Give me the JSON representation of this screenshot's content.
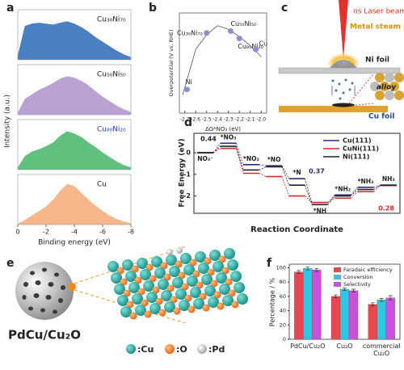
{
  "panel_labels": [
    "a",
    "b",
    "c",
    "d",
    "e",
    "f"
  ],
  "chart_data": [
    {
      "type": "area",
      "y_label": "Intensity (a.u.)",
      "x_label": "Binding energy (eV)",
      "x": [
        0,
        -0.5,
        -1,
        -1.5,
        -2,
        -2.5,
        -3,
        -3.5,
        -4,
        -4.5,
        -5,
        -5.5,
        -6,
        -6.5,
        -7,
        -7.5,
        -8
      ],
      "xlim": [
        0,
        -8
      ],
      "xticks": [
        0,
        -2,
        -4,
        -6,
        -8
      ],
      "ylim": [
        0,
        1
      ],
      "series": [
        {
          "name": "Cu₃₀Ni₇₀",
          "color": "#4a80c2",
          "values": [
            0.1,
            0.75,
            0.8,
            0.82,
            0.8,
            0.78,
            0.82,
            0.85,
            0.8,
            0.72,
            0.62,
            0.5,
            0.4,
            0.3,
            0.2,
            0.12,
            0.06
          ]
        },
        {
          "name": "Cu₅₀Ni₅₀",
          "color": "#b9a2d2",
          "values": [
            0.05,
            0.35,
            0.45,
            0.55,
            0.62,
            0.7,
            0.8,
            0.85,
            0.82,
            0.75,
            0.65,
            0.52,
            0.4,
            0.3,
            0.2,
            0.12,
            0.06
          ]
        },
        {
          "name": "Cu₈₀Ni₂₀",
          "color": "#62c07e",
          "values": [
            0.05,
            0.3,
            0.4,
            0.45,
            0.52,
            0.6,
            0.75,
            0.85,
            0.8,
            0.72,
            0.6,
            0.5,
            0.38,
            0.28,
            0.18,
            0.1,
            0.05
          ]
        },
        {
          "name": "Cu",
          "color": "#f7b78a",
          "values": [
            0.02,
            0.1,
            0.2,
            0.3,
            0.4,
            0.55,
            0.75,
            0.9,
            0.85,
            0.7,
            0.55,
            0.42,
            0.3,
            0.2,
            0.12,
            0.07,
            0.03
          ]
        }
      ]
    },
    {
      "type": "scatter",
      "y_label": "Overpotential (V vs. RHE)",
      "x_label": "ΔG*NO₃ (eV)",
      "xlim": [
        -2.75,
        -1.95
      ],
      "xticks": [
        -2.7,
        -2.6,
        -2.5,
        -2.4,
        -2.3,
        -2.2,
        -2.1,
        {
          "value": -2,
          "label": "-2.0"
        }
      ],
      "ylim": [
        -0.35,
        0.2
      ],
      "color": "#8a8fd6",
      "point_labels": [
        "Ni",
        "Cu₃₀Ni₇₀",
        "Cu₅₀Ni₅₀",
        "Cu₈₀Ni₂₀",
        "Cu"
      ],
      "x": [
        -2.68,
        -2.5,
        -2.28,
        -2.2,
        -2.05
      ],
      "values": [
        -0.22,
        0.09,
        0.1,
        0.06,
        0.0
      ],
      "curve": {
        "x": [
          -2.72,
          -2.6,
          -2.5,
          -2.4,
          -2.3,
          -2.2,
          -2.1,
          -2.0
        ],
        "values": [
          -0.25,
          0.0,
          0.08,
          0.13,
          0.11,
          0.07,
          0.02,
          -0.04
        ]
      }
    },
    {
      "type": "step",
      "y_label": "Free Energy (eV)",
      "x_label": "Reaction Coordinate",
      "categories": [
        "NO₃⁻",
        "*NO₃",
        "*NO₂",
        "*NO",
        "*N",
        "*NH",
        "*NH₂",
        "*NH₃",
        "NH₃"
      ],
      "ylim": [
        -2.8,
        0.9
      ],
      "yticks": [
        0,
        -1,
        -2
      ],
      "series": [
        {
          "name": "Cu(111)",
          "color": "#2b2d7a",
          "values": [
            0,
            0.44,
            -0.55,
            -0.6,
            -1.2,
            -2.3,
            -1.95,
            -1.6,
            -1.5
          ]
        },
        {
          "name": "CuNi(111)",
          "color": "#e0262b",
          "values": [
            0,
            0.2,
            -0.95,
            -1.1,
            -2.0,
            -2.3,
            -2.1,
            -1.8,
            -1.52
          ]
        },
        {
          "name": "Ni(111)",
          "color": "#222222",
          "values": [
            0,
            0.3,
            -0.8,
            -0.65,
            -1.5,
            -2.4,
            -2.0,
            -1.7,
            -1.5
          ]
        }
      ],
      "annotations": [
        0.44,
        0.37,
        0.28
      ],
      "annotation_colors": [
        "#222222",
        "#2b2d7a",
        "#e0262b"
      ]
    },
    {
      "type": "bar",
      "y_label": "Percentage / %",
      "categories": [
        "PdCu/Cu₂O",
        "Cu₂O",
        "commercial Cu₂O"
      ],
      "ylim": [
        0,
        105
      ],
      "yticks": [
        0,
        20,
        40,
        60,
        80,
        100
      ],
      "series": [
        {
          "name": "Faradaic efficiency",
          "color": "#e8474f",
          "values": [
            94,
            60,
            49
          ],
          "errors": [
            2,
            2,
            2
          ]
        },
        {
          "name": "Conversion",
          "color": "#2fc6e6",
          "values": [
            99,
            70,
            55
          ],
          "errors": [
            2,
            1.5,
            2
          ]
        },
        {
          "name": "Selectivity",
          "color": "#c653d8",
          "values": [
            97,
            68,
            58
          ],
          "errors": [
            2,
            2,
            3
          ]
        }
      ]
    }
  ],
  "diagram_c": {
    "labels": [
      "ns Laser beam",
      "Metal steam plasma",
      "Ni foil",
      "alloy",
      "Cu foil"
    ]
  },
  "illustration_e": {
    "title": "PdCu/Cu₂O",
    "legend": [
      ":Cu",
      ":O",
      ":Pd"
    ]
  }
}
